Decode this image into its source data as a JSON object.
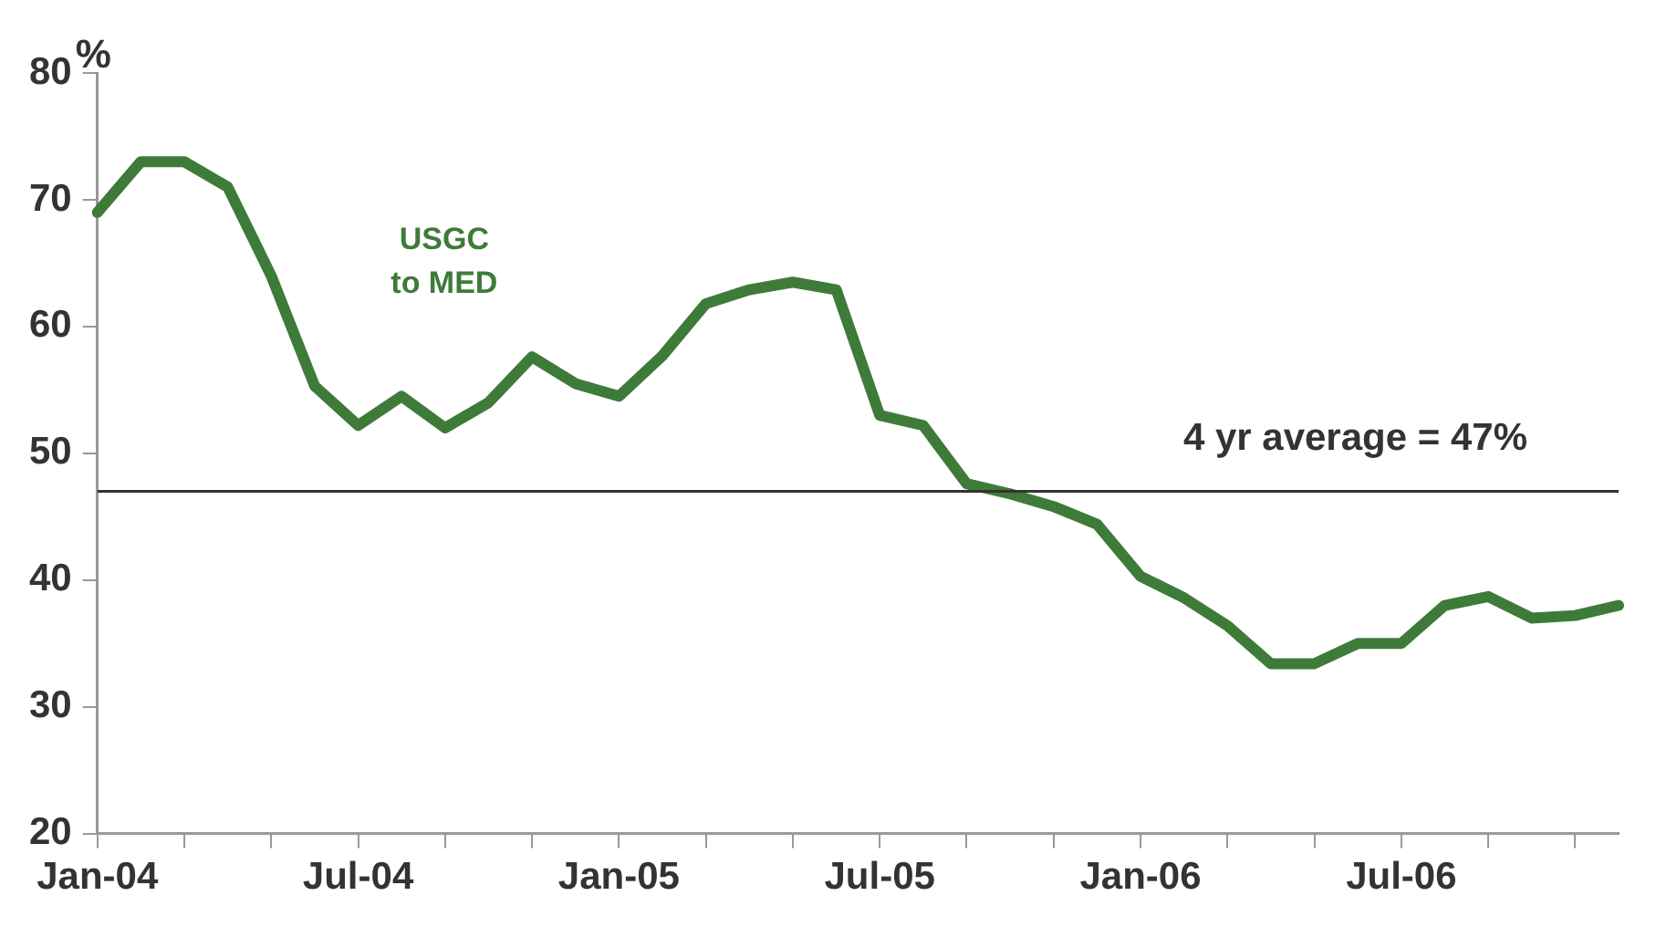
{
  "chart_data": {
    "type": "line",
    "ylabel": "%",
    "categories": [
      "Jan-04",
      null,
      null,
      null,
      null,
      null,
      "Jul-04",
      null,
      null,
      null,
      null,
      null,
      "Jan-05",
      null,
      null,
      null,
      null,
      null,
      "Jul-05",
      null,
      null,
      null,
      null,
      null,
      "Jan-06",
      null,
      null,
      null,
      null,
      null,
      "Jul-06",
      null,
      null,
      null,
      null,
      null
    ],
    "series": [
      {
        "name": "USGC\nto MED",
        "color": "#3e7b39",
        "values": [
          69,
          73,
          73,
          71,
          64,
          55.3,
          52.2,
          54.5,
          52,
          54,
          57.6,
          55.5,
          54.5,
          57.7,
          61.8,
          62.9,
          63.5,
          62.9,
          53,
          52.2,
          47.6,
          46.8,
          45.8,
          44.4,
          40.3,
          38.6,
          36.4,
          33.4,
          33.4,
          35,
          35,
          38,
          38.7,
          37,
          37.2,
          38
        ]
      }
    ],
    "ylim": [
      20,
      80
    ],
    "yticks": [
      20,
      30,
      40,
      50,
      60,
      70,
      80
    ],
    "ref_lines": [
      {
        "axis": "y",
        "value": 47,
        "label": "4 yr average = 47%",
        "color": "#333333"
      }
    ],
    "grid": false,
    "legend": false,
    "marker": "none",
    "line_style": "solid"
  }
}
